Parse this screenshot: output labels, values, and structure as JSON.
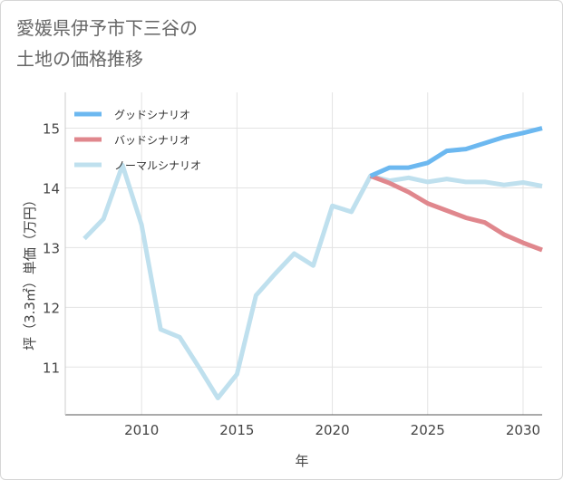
{
  "title_lines": [
    "愛媛県伊予市下三谷の",
    "土地の価格推移"
  ],
  "chart_data": {
    "type": "line",
    "title": "愛媛県伊予市下三谷の土地の価格推移",
    "xlabel": "年",
    "ylabel": "坪（3.3㎡）単価（万円）",
    "xlim": [
      2006,
      2031
    ],
    "ylim": [
      10.2,
      15.6
    ],
    "x_ticks": [
      2010,
      2015,
      2020,
      2025,
      2030
    ],
    "y_ticks": [
      11,
      12,
      13,
      14,
      15
    ],
    "legend_position": "top-left",
    "series": [
      {
        "name": "グッドシナリオ",
        "color": "#6cb8f0",
        "x": [
          2022,
          2023,
          2024,
          2025,
          2026,
          2027,
          2028,
          2029,
          2030,
          2031
        ],
        "values": [
          14.2,
          14.34,
          14.34,
          14.42,
          14.62,
          14.65,
          14.75,
          14.85,
          14.92,
          15.0
        ]
      },
      {
        "name": "バッドシナリオ",
        "color": "#e0878d",
        "x": [
          2022,
          2023,
          2024,
          2025,
          2026,
          2027,
          2028,
          2029,
          2030,
          2031
        ],
        "values": [
          14.2,
          14.08,
          13.93,
          13.74,
          13.62,
          13.5,
          13.42,
          13.22,
          13.08,
          12.96
        ]
      },
      {
        "name": "ノーマルシナリオ",
        "color": "#bfe0ee",
        "x": [
          2007,
          2008,
          2009,
          2010,
          2011,
          2012,
          2013,
          2014,
          2015,
          2016,
          2017,
          2018,
          2019,
          2020,
          2021,
          2022,
          2023,
          2024,
          2025,
          2026,
          2027,
          2028,
          2029,
          2030,
          2031
        ],
        "values": [
          13.15,
          13.48,
          14.38,
          13.38,
          11.63,
          11.5,
          11.0,
          10.48,
          10.88,
          12.2,
          12.56,
          12.9,
          12.7,
          13.7,
          13.6,
          14.2,
          14.12,
          14.17,
          14.1,
          14.15,
          14.1,
          14.1,
          14.05,
          14.09,
          14.03
        ]
      }
    ]
  }
}
